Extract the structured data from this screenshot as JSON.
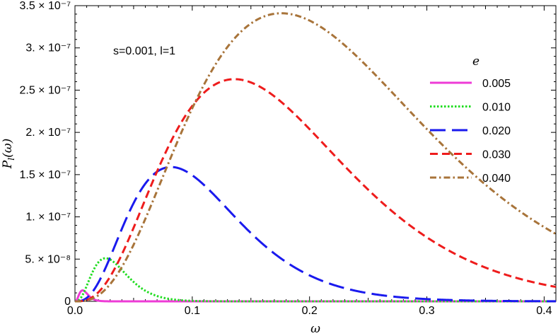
{
  "chart_data": {
    "type": "line",
    "xlabel": "ω",
    "ylabel": "P_l(ω)",
    "xlim": [
      0,
      0.41
    ],
    "ylim": [
      0,
      3.5e-07
    ],
    "x_ticks": [
      {
        "value": 0,
        "label": "0.0"
      },
      {
        "value": 0.1,
        "label": "0.1"
      },
      {
        "value": 0.2,
        "label": "0.2"
      },
      {
        "value": 0.3,
        "label": "0.3"
      },
      {
        "value": 0.4,
        "label": "0.4"
      }
    ],
    "y_ticks": [
      {
        "value": 0,
        "label": "0"
      },
      {
        "value": 5e-08,
        "label": "5. × 10⁻⁸"
      },
      {
        "value": 1e-07,
        "label": "1. × 10⁻⁷"
      },
      {
        "value": 1.5e-07,
        "label": "1.5 × 10⁻⁷"
      },
      {
        "value": 2e-07,
        "label": "2. × 10⁻⁷"
      },
      {
        "value": 2.5e-07,
        "label": "2.5 × 10⁻⁷"
      },
      {
        "value": 3e-07,
        "label": "3. × 10⁻⁷"
      },
      {
        "value": 3.5e-07,
        "label": "3.5 × 10⁻⁷"
      }
    ],
    "annotation": "s=0.001,  l=1",
    "legend_title": "e",
    "legend_position": "top-right",
    "series": [
      {
        "name": "0.005",
        "color": "#ee3bd6",
        "style": "solid",
        "peak_x": 0.0065,
        "peak_y": 1.3e-08,
        "alpha": 3,
        "beta": 460
      },
      {
        "name": "0.010",
        "color": "#22dd22",
        "style": "dotted",
        "peak_x": 0.026,
        "peak_y": 5.1e-08,
        "alpha": 3,
        "beta": 115
      },
      {
        "name": "0.020",
        "color": "#1a1aee",
        "style": "long-dash",
        "peak_x": 0.082,
        "peak_y": 1.59e-07,
        "alpha": 3,
        "beta": 36.6
      },
      {
        "name": "0.030",
        "color": "#ee1c1c",
        "style": "dash",
        "peak_x": 0.136,
        "peak_y": 2.63e-07,
        "alpha": 3,
        "beta": 22.06
      },
      {
        "name": "0.040",
        "color": "#a8743a",
        "style": "dash-dot",
        "peak_x": 0.176,
        "peak_y": 3.41e-07,
        "alpha": 3,
        "beta": 17.05
      }
    ]
  }
}
